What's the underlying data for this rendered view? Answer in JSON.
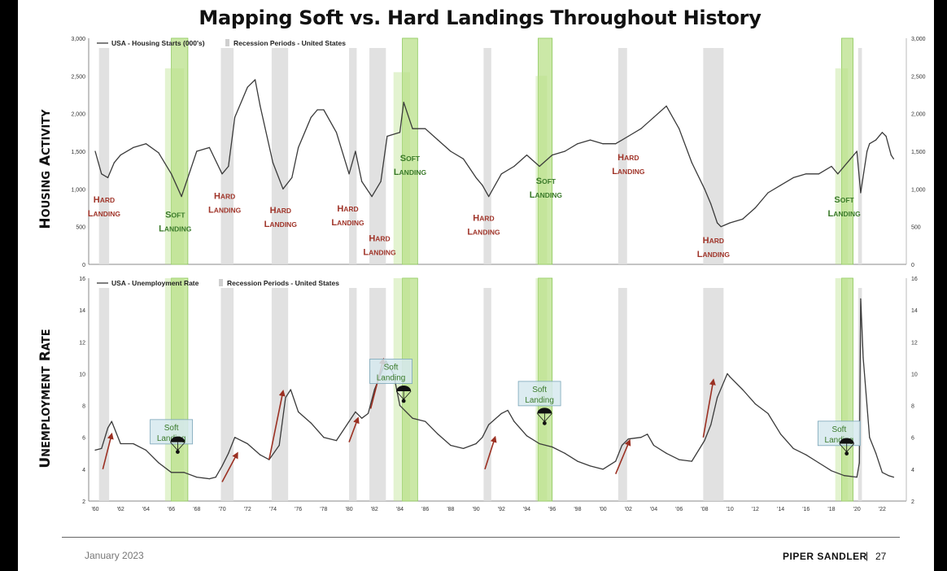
{
  "title": "Mapping Soft vs. Hard Landings Throughout History",
  "panels": {
    "housing_label": "Housing Activity",
    "unemployment_label": "Unemployment Rate"
  },
  "footer": {
    "date": "January 2023",
    "brand": "PIPER SANDLER",
    "separator": "|",
    "page": "27"
  },
  "colors": {
    "line": "#3a3a3a",
    "recession": "#dcdcdc",
    "soft_band": "#b9e08a",
    "hard_text": "#a0352a",
    "soft_text": "#3a7a2a",
    "arrow": "#9b3022"
  },
  "chart_data": [
    {
      "type": "line",
      "legend": [
        "USA - Housing Starts (000's)",
        "Recession Periods - United States"
      ],
      "ylim": [
        0,
        3000
      ],
      "yticks": [
        "0",
        "500",
        "1,000",
        "1,500",
        "2,000",
        "2,500",
        "3,000"
      ],
      "xlim": [
        1960,
        2023
      ],
      "series": [
        {
          "name": "USA - Housing Starts (000's)",
          "x": [
            1960,
            1960.5,
            1961,
            1961.5,
            1962,
            1963,
            1964,
            1965,
            1966,
            1966.8,
            1967.5,
            1968,
            1969,
            1970,
            1970.5,
            1971,
            1972,
            1972.6,
            1973,
            1974,
            1974.8,
            1975.5,
            1976,
            1977,
            1977.5,
            1978,
            1979,
            1980,
            1980.5,
            1981,
            1981.8,
            1982.5,
            1983,
            1984,
            1984.3,
            1985,
            1986,
            1987,
            1988,
            1989,
            1990,
            1990.5,
            1991,
            1992,
            1993,
            1994,
            1995,
            1996,
            1997,
            1998,
            1999,
            2000,
            2001,
            2002,
            2003,
            2004,
            2005,
            2006,
            2007,
            2008,
            2008.5,
            2009,
            2009.3,
            2010,
            2011,
            2012,
            2013,
            2014,
            2015,
            2016,
            2017,
            2018,
            2018.5,
            2019,
            2019.5,
            2020,
            2020.3,
            2020.8,
            2021,
            2021.5,
            2022,
            2022.3,
            2022.7,
            2022.9
          ],
          "values": [
            1500,
            1200,
            1150,
            1350,
            1450,
            1550,
            1600,
            1480,
            1200,
            900,
            1250,
            1500,
            1550,
            1200,
            1300,
            1950,
            2350,
            2450,
            2100,
            1350,
            1000,
            1150,
            1550,
            1950,
            2050,
            2050,
            1750,
            1200,
            1500,
            1100,
            900,
            1100,
            1700,
            1750,
            2150,
            1800,
            1800,
            1650,
            1500,
            1400,
            1150,
            1050,
            900,
            1200,
            1300,
            1450,
            1300,
            1450,
            1500,
            1600,
            1650,
            1600,
            1600,
            1700,
            1800,
            1950,
            2100,
            1800,
            1350,
            1000,
            800,
            550,
            500,
            550,
            600,
            750,
            950,
            1050,
            1150,
            1200,
            1200,
            1300,
            1200,
            1300,
            1400,
            1500,
            950,
            1500,
            1600,
            1650,
            1750,
            1700,
            1450,
            1400
          ]
        }
      ],
      "recessions": [
        [
          1960.3,
          1961.1
        ],
        [
          1969.9,
          1970.9
        ],
        [
          1973.9,
          1975.2
        ],
        [
          1980.0,
          1980.6
        ],
        [
          1981.6,
          1982.9
        ],
        [
          1990.6,
          1991.2
        ],
        [
          2001.2,
          2001.9
        ],
        [
          2007.9,
          2009.5
        ],
        [
          2020.1,
          2020.4
        ]
      ],
      "soft_bands": [
        {
          "x": [
            1966.0,
            1967.3
          ],
          "ytop": 3000
        },
        {
          "x": [
            1965.5,
            1967.0
          ],
          "ytop": 2600
        },
        {
          "x": [
            1984.2,
            1985.4
          ],
          "ytop": 3000
        },
        {
          "x": [
            1983.5,
            1984.8
          ],
          "ytop": 2550
        },
        {
          "x": [
            1994.9,
            1996.0
          ],
          "ytop": 3000
        },
        {
          "x": [
            1994.7,
            1995.6
          ],
          "ytop": 2500
        },
        {
          "x": [
            2018.8,
            2019.7
          ],
          "ytop": 3000
        },
        {
          "x": [
            2018.3,
            2019.3
          ],
          "ytop": 2600
        }
      ],
      "annotations": [
        {
          "kind": "hard",
          "line1": "Hard",
          "line2": "Landing",
          "x": 1960.7,
          "y": 820
        },
        {
          "kind": "soft",
          "line1": "Soft",
          "line2": "Landing",
          "x": 1966.3,
          "y": 620
        },
        {
          "kind": "hard",
          "line1": "Hard",
          "line2": "Landing",
          "x": 1970.2,
          "y": 870
        },
        {
          "kind": "hard",
          "line1": "Hard",
          "line2": "Landing",
          "x": 1974.6,
          "y": 680
        },
        {
          "kind": "hard",
          "line1": "Hard",
          "line2": "Landing",
          "x": 1979.9,
          "y": 700
        },
        {
          "kind": "hard",
          "line1": "Hard",
          "line2": "Landing",
          "x": 1982.4,
          "y": 310
        },
        {
          "kind": "soft",
          "line1": "Soft",
          "line2": "Landing",
          "x": 1984.8,
          "y": 1370
        },
        {
          "kind": "hard",
          "line1": "Hard",
          "line2": "Landing",
          "x": 1990.6,
          "y": 580
        },
        {
          "kind": "soft",
          "line1": "Soft",
          "line2": "Landing",
          "x": 1995.5,
          "y": 1070
        },
        {
          "kind": "hard",
          "line1": "Hard",
          "line2": "Landing",
          "x": 2002.0,
          "y": 1380
        },
        {
          "kind": "hard",
          "line1": "Hard",
          "line2": "Landing",
          "x": 2008.7,
          "y": 280
        },
        {
          "kind": "soft",
          "line1": "Soft",
          "line2": "Landing",
          "x": 2019.0,
          "y": 820
        }
      ]
    },
    {
      "type": "line",
      "legend": [
        "USA - Unemployment Rate",
        "Recession Periods - United States"
      ],
      "ylim": [
        2,
        16
      ],
      "yticks": [
        "2",
        "4",
        "6",
        "8",
        "10",
        "12",
        "14",
        "16"
      ],
      "xlim": [
        1960,
        2023
      ],
      "xticks": [
        "'60",
        "'62",
        "'64",
        "'66",
        "'68",
        "'70",
        "'72",
        "'74",
        "'76",
        "'78",
        "'80",
        "'82",
        "'84",
        "'86",
        "'88",
        "'90",
        "'92",
        "'94",
        "'96",
        "'98",
        "'00",
        "'02",
        "'04",
        "'06",
        "'08",
        "'10",
        "'12",
        "'14",
        "'16",
        "'18",
        "'20",
        "'22"
      ],
      "series": [
        {
          "name": "USA - Unemployment Rate",
          "x": [
            1960,
            1960.5,
            1961,
            1961.3,
            1962,
            1963,
            1964,
            1965,
            1966,
            1967,
            1968,
            1969,
            1969.5,
            1970,
            1970.5,
            1971,
            1972,
            1973,
            1973.7,
            1974.5,
            1975,
            1975.4,
            1976,
            1977,
            1978,
            1979,
            1980,
            1980.5,
            1981,
            1981.5,
            1982,
            1982.9,
            1983.5,
            1984,
            1985,
            1986,
            1987,
            1988,
            1989,
            1990,
            1990.5,
            1991,
            1992,
            1992.5,
            1993,
            1994,
            1995,
            1996,
            1997,
            1998,
            1999,
            2000,
            2001,
            2001.5,
            2002,
            2003,
            2003.5,
            2004,
            2005,
            2006,
            2007,
            2008,
            2008.5,
            2009,
            2009.8,
            2010,
            2011,
            2012,
            2013,
            2014,
            2015,
            2016,
            2017,
            2018,
            2019,
            2020,
            2020.2,
            2020.3,
            2020.5,
            2021,
            2021.5,
            2022,
            2022.5,
            2022.9
          ],
          "values": [
            5.2,
            5.3,
            6.6,
            7.0,
            5.6,
            5.6,
            5.2,
            4.4,
            3.8,
            3.8,
            3.5,
            3.4,
            3.5,
            4.2,
            5.0,
            6.0,
            5.6,
            4.9,
            4.6,
            5.5,
            8.5,
            9.0,
            7.6,
            6.9,
            6.0,
            5.8,
            7.0,
            7.6,
            7.2,
            7.5,
            9.0,
            10.8,
            10.0,
            8.0,
            7.2,
            7.0,
            6.2,
            5.5,
            5.3,
            5.6,
            6.0,
            6.8,
            7.5,
            7.7,
            7.0,
            6.1,
            5.6,
            5.4,
            5.0,
            4.5,
            4.2,
            4.0,
            4.5,
            5.5,
            5.9,
            6.0,
            6.2,
            5.5,
            5.0,
            4.6,
            4.5,
            5.8,
            6.8,
            8.5,
            10.0,
            9.8,
            9.0,
            8.1,
            7.5,
            6.2,
            5.3,
            4.9,
            4.4,
            3.9,
            3.6,
            3.5,
            4.4,
            14.7,
            11.0,
            6.0,
            5.0,
            3.8,
            3.6,
            3.5
          ]
        }
      ],
      "recessions": [
        [
          1960.3,
          1961.1
        ],
        [
          1969.9,
          1970.9
        ],
        [
          1973.9,
          1975.2
        ],
        [
          1980.0,
          1980.6
        ],
        [
          1981.6,
          1982.9
        ],
        [
          1990.6,
          1991.2
        ],
        [
          2001.2,
          2001.9
        ],
        [
          2007.9,
          2009.5
        ],
        [
          2020.1,
          2020.4
        ]
      ],
      "soft_bands": [
        {
          "x": [
            1966.0,
            1967.3
          ],
          "ytop": 16
        },
        {
          "x": [
            1965.5,
            1967.0
          ],
          "ytop": 16
        },
        {
          "x": [
            1984.2,
            1985.4
          ],
          "ytop": 16
        },
        {
          "x": [
            1983.5,
            1984.8
          ],
          "ytop": 16
        },
        {
          "x": [
            1994.9,
            1996.0
          ],
          "ytop": 16
        },
        {
          "x": [
            1994.7,
            1995.6
          ],
          "ytop": 16
        },
        {
          "x": [
            2018.8,
            2019.7
          ],
          "ytop": 16
        },
        {
          "x": [
            2018.3,
            2019.3
          ],
          "ytop": 16
        }
      ],
      "soft_boxes": [
        {
          "line1": "Soft",
          "line2": "Landing",
          "x": 1966.0,
          "y": 6.3,
          "parachute_x": 1966.5,
          "parachute_y": 5.7
        },
        {
          "line1": "Soft",
          "line2": "Landing",
          "x": 1983.3,
          "y": 10.1,
          "parachute_x": 1984.3,
          "parachute_y": 8.9
        },
        {
          "line1": "Soft",
          "line2": "Landing",
          "x": 1995.0,
          "y": 8.7,
          "parachute_x": 1995.4,
          "parachute_y": 7.5
        },
        {
          "line1": "Soft",
          "line2": "Landing",
          "x": 2018.6,
          "y": 6.2,
          "parachute_x": 2019.2,
          "parachute_y": 5.6
        }
      ],
      "arrows": [
        {
          "x1": 1960.6,
          "y1": 4.0,
          "x2": 1961.3,
          "y2": 6.2
        },
        {
          "x1": 1970.0,
          "y1": 3.2,
          "x2": 1971.2,
          "y2": 5.0
        },
        {
          "x1": 1973.7,
          "y1": 4.6,
          "x2": 1974.8,
          "y2": 8.9
        },
        {
          "x1": 1980.0,
          "y1": 5.7,
          "x2": 1980.7,
          "y2": 7.2
        },
        {
          "x1": 1981.7,
          "y1": 7.8,
          "x2": 1982.7,
          "y2": 10.9
        },
        {
          "x1": 1990.7,
          "y1": 4.0,
          "x2": 1991.5,
          "y2": 6.0
        },
        {
          "x1": 2001.0,
          "y1": 3.7,
          "x2": 2002.1,
          "y2": 5.8
        },
        {
          "x1": 2007.9,
          "y1": 6.0,
          "x2": 2008.7,
          "y2": 9.6
        }
      ]
    }
  ]
}
